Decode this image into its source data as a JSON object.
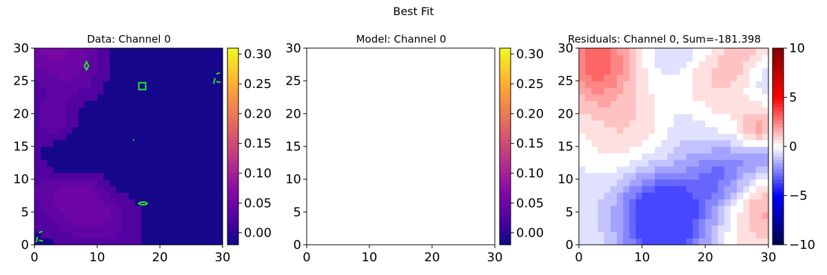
{
  "chart_data": {
    "suptitle": "Best Fit",
    "panels": [
      {
        "id": "data",
        "type": "heatmap",
        "title": "Data: Channel 0",
        "colormap": "plasma",
        "xlim": [
          0,
          30
        ],
        "ylim": [
          0,
          30
        ],
        "xticks": [
          "0",
          "10",
          "20",
          "30"
        ],
        "yticks": [
          "0",
          "5",
          "10",
          "15",
          "20",
          "25",
          "30"
        ],
        "colorbar": {
          "vmin": -0.02,
          "vmax": 0.31,
          "ticks": [
            {
              "value": 0.0,
              "label": "0.00"
            },
            {
              "value": 0.05,
              "label": "0.05"
            },
            {
              "value": 0.1,
              "label": "0.10"
            },
            {
              "value": 0.15,
              "label": "0.15"
            },
            {
              "value": 0.2,
              "label": "0.20"
            },
            {
              "value": 0.25,
              "label": "0.25"
            },
            {
              "value": 0.3,
              "label": "0.30"
            }
          ]
        },
        "contour_color": "#22ee22",
        "contours": [
          {
            "type": "diamond",
            "x": 8.3,
            "y": 27.3
          },
          {
            "type": "square",
            "x": 17.2,
            "y": 24.2
          },
          {
            "type": "dot",
            "x": 15.8,
            "y": 16.0
          },
          {
            "type": "oval",
            "x": 17.3,
            "y": 6.3
          },
          {
            "type": "edge",
            "x": 28.9,
            "y": 25.2
          },
          {
            "type": "edge",
            "x": 0.6,
            "y": 1.0
          }
        ]
      },
      {
        "id": "model",
        "type": "heatmap",
        "title": "Model:  Channel 0",
        "colormap": "plasma",
        "xlim": [
          0,
          30
        ],
        "ylim": [
          0,
          30
        ],
        "xticks": [
          "0",
          "10",
          "20",
          "30"
        ],
        "yticks": [
          "0",
          "5",
          "10",
          "15",
          "20",
          "25",
          "30"
        ],
        "colorbar": {
          "vmin": -0.02,
          "vmax": 0.31,
          "ticks": [
            {
              "value": 0.0,
              "label": "0.00"
            },
            {
              "value": 0.05,
              "label": "0.05"
            },
            {
              "value": 0.1,
              "label": "0.10"
            },
            {
              "value": 0.15,
              "label": "0.15"
            },
            {
              "value": 0.2,
              "label": "0.20"
            },
            {
              "value": 0.25,
              "label": "0.25"
            },
            {
              "value": 0.3,
              "label": "0.30"
            }
          ]
        }
      },
      {
        "id": "residuals",
        "type": "heatmap",
        "title": "Residuals: Channel 0, Sum=-181.398",
        "colormap": "seismic",
        "xlim": [
          0,
          30
        ],
        "ylim": [
          0,
          30
        ],
        "xticks": [
          "0",
          "10",
          "20",
          "30"
        ],
        "yticks": [
          "0",
          "5",
          "10",
          "15",
          "20",
          "25",
          "30"
        ],
        "colorbar": {
          "vmin": -10,
          "vmax": 10,
          "ticks": [
            {
              "value": -10,
              "label": "−10"
            },
            {
              "value": -5,
              "label": "−5"
            },
            {
              "value": 0,
              "label": "0"
            },
            {
              "value": 5,
              "label": "5"
            },
            {
              "value": 10,
              "label": "10"
            }
          ]
        }
      }
    ]
  }
}
